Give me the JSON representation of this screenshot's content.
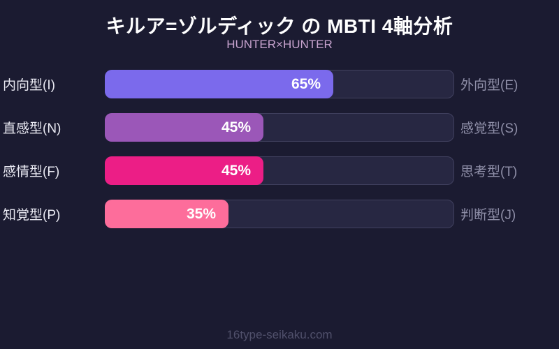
{
  "header": {
    "title": "キルア=ゾルディック の MBTI 4軸分析",
    "subtitle": "HUNTER×HUNTER"
  },
  "chart_data": {
    "type": "bar",
    "orientation": "horizontal",
    "title": "キルア=ゾルディック の MBTI 4軸分析",
    "subtitle": "HUNTER×HUNTER",
    "xlim": [
      0,
      100
    ],
    "grid": false,
    "legend": "none",
    "rows": [
      {
        "left_label": "内向型(I)",
        "right_label": "外向型(E)",
        "value": 65,
        "value_label": "65%",
        "color": "#7b6aec"
      },
      {
        "left_label": "直感型(N)",
        "right_label": "感覚型(S)",
        "value": 45,
        "value_label": "45%",
        "color": "#9b57b8"
      },
      {
        "left_label": "感情型(F)",
        "right_label": "思考型(T)",
        "value": 45,
        "value_label": "45%",
        "color": "#ec1e86"
      },
      {
        "left_label": "知覚型(P)",
        "right_label": "判断型(J)",
        "value": 35,
        "value_label": "35%",
        "color": "#fd6d9b"
      }
    ]
  },
  "footer": {
    "watermark": "16type-seikaku.com"
  },
  "colors": {
    "background": "#1b1b31",
    "track_fill": "#272742",
    "track_border": "#41415f",
    "title_text": "#ffffff",
    "subtitle_text": "#c7a3ce",
    "left_label_text": "#e9e9f2",
    "right_label_text": "#8f8fa8",
    "value_text": "#ffffff",
    "watermark_text": "#50506b"
  }
}
